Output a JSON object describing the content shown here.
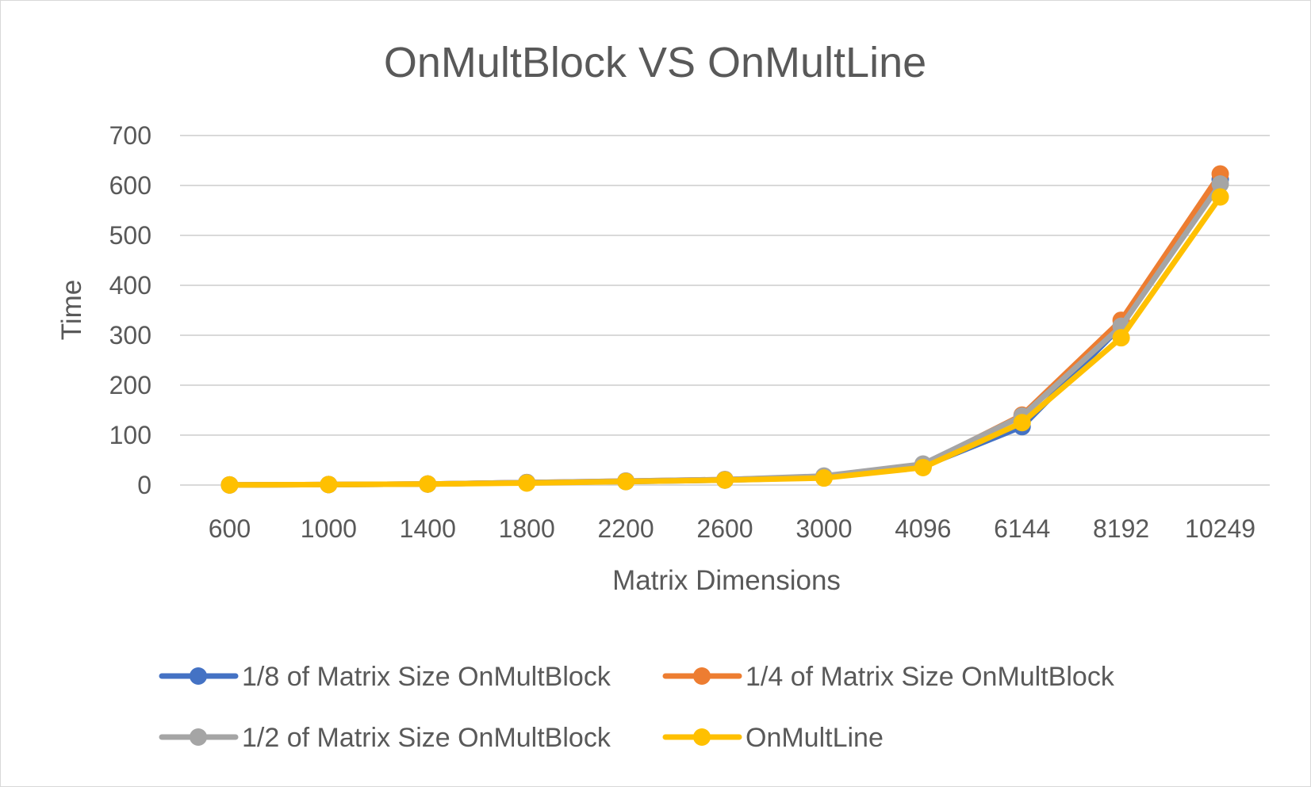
{
  "chart_data": {
    "type": "line",
    "title": "OnMultBlock VS OnMultLine",
    "xlabel": "Matrix Dimensions",
    "ylabel": "Time",
    "categories": [
      "600",
      "1000",
      "1400",
      "1800",
      "2200",
      "2600",
      "3000",
      "4096",
      "6144",
      "8192",
      "10249"
    ],
    "yticks": [
      "0",
      "100",
      "200",
      "300",
      "400",
      "500",
      "600",
      "700"
    ],
    "ylim": [
      0,
      700
    ],
    "grid": true,
    "legend_position": "bottom",
    "series": [
      {
        "name": "1/8 of Matrix Size OnMultBlock",
        "color": "#4472C4",
        "values": [
          0.2,
          1,
          2,
          5,
          7,
          10,
          15,
          37,
          117,
          318,
          612
        ]
      },
      {
        "name": "1/4 of Matrix Size OnMultBlock",
        "color": "#ED7D31",
        "values": [
          0.2,
          1,
          2,
          5,
          8,
          11,
          17,
          40,
          140,
          330,
          623
        ]
      },
      {
        "name": "1/2 of Matrix Size OnMultBlock",
        "color": "#A5A5A5",
        "values": [
          0.2,
          1,
          2,
          5,
          8,
          11,
          18,
          42,
          138,
          318,
          603
        ]
      },
      {
        "name": "OnMultLine",
        "color": "#FFC000",
        "values": [
          0.2,
          1,
          2,
          4,
          7,
          10,
          14,
          35,
          125,
          295,
          577
        ]
      }
    ]
  }
}
